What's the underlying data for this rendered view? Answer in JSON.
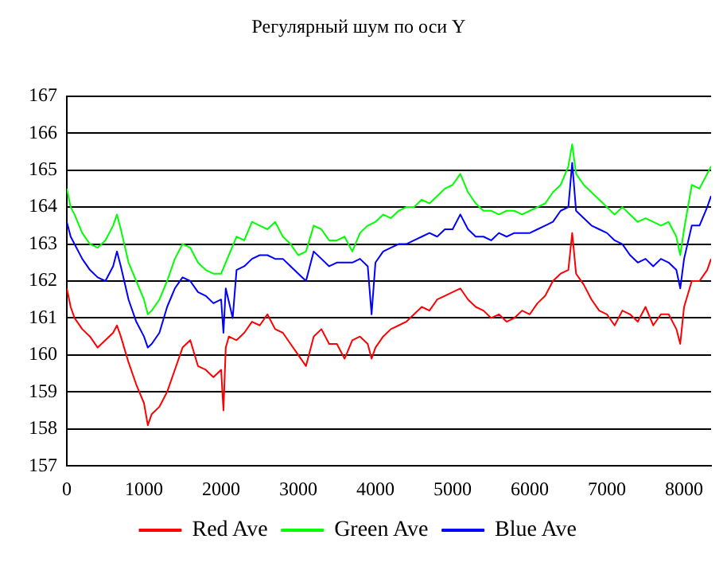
{
  "chart_data": {
    "type": "line",
    "title": "Регулярный шум по оси Y",
    "xlim": [
      0,
      8350
    ],
    "xticks": [
      0,
      1000,
      2000,
      3000,
      4000,
      5000,
      6000,
      7000,
      8000
    ],
    "ylim": [
      157,
      167
    ],
    "yticks": [
      157,
      158,
      159,
      160,
      161,
      162,
      163,
      164,
      165,
      166,
      167
    ],
    "grid": "y",
    "legend": "bottom",
    "marker": "none",
    "line_style": "solid",
    "series": [
      {
        "name": "Red Ave",
        "color": "#ff0000",
        "x": [
          0,
          50,
          100,
          200,
          300,
          400,
          500,
          600,
          650,
          700,
          800,
          900,
          1000,
          1050,
          1100,
          1200,
          1300,
          1400,
          1500,
          1600,
          1700,
          1800,
          1900,
          2000,
          2030,
          2060,
          2100,
          2200,
          2300,
          2400,
          2500,
          2600,
          2700,
          2800,
          2900,
          3000,
          3100,
          3200,
          3300,
          3400,
          3500,
          3600,
          3700,
          3800,
          3900,
          3950,
          4000,
          4100,
          4200,
          4300,
          4400,
          4500,
          4600,
          4700,
          4800,
          4900,
          5000,
          5100,
          5200,
          5300,
          5400,
          5500,
          5600,
          5700,
          5800,
          5900,
          6000,
          6100,
          6200,
          6300,
          6400,
          6500,
          6550,
          6600,
          6700,
          6800,
          6900,
          7000,
          7100,
          7200,
          7300,
          7400,
          7500,
          7600,
          7700,
          7800,
          7900,
          7950,
          8000,
          8100,
          8200,
          8300,
          8350
        ],
        "values": [
          161.8,
          161.3,
          161,
          160.7,
          160.5,
          160.2,
          160.4,
          160.6,
          160.8,
          160.5,
          159.8,
          159.2,
          158.7,
          158.1,
          158.4,
          158.6,
          159,
          159.6,
          160.2,
          160.4,
          159.7,
          159.6,
          159.4,
          159.6,
          158.5,
          160.2,
          160.5,
          160.4,
          160.6,
          160.9,
          160.8,
          161.1,
          160.7,
          160.6,
          160.3,
          160,
          159.7,
          160.5,
          160.7,
          160.3,
          160.3,
          159.9,
          160.4,
          160.5,
          160.3,
          159.9,
          160.2,
          160.5,
          160.7,
          160.8,
          160.9,
          161.1,
          161.3,
          161.2,
          161.5,
          161.6,
          161.7,
          161.8,
          161.5,
          161.3,
          161.2,
          161,
          161.1,
          160.9,
          161,
          161.2,
          161.1,
          161.4,
          161.6,
          162,
          162.2,
          162.3,
          163.3,
          162.2,
          161.9,
          161.5,
          161.2,
          161.1,
          160.8,
          161.2,
          161.1,
          160.9,
          161.3,
          160.8,
          161.1,
          161.1,
          160.7,
          160.3,
          161.3,
          162,
          162,
          162.3,
          162.6
        ]
      },
      {
        "name": "Green Ave",
        "color": "#00ff00",
        "x": [
          0,
          50,
          100,
          200,
          300,
          400,
          500,
          600,
          650,
          700,
          800,
          900,
          1000,
          1050,
          1100,
          1200,
          1300,
          1400,
          1500,
          1600,
          1700,
          1800,
          1900,
          2000,
          2100,
          2200,
          2300,
          2400,
          2500,
          2600,
          2700,
          2800,
          2900,
          3000,
          3100,
          3200,
          3300,
          3400,
          3500,
          3600,
          3700,
          3800,
          3900,
          4000,
          4100,
          4200,
          4300,
          4400,
          4500,
          4600,
          4700,
          4800,
          4900,
          5000,
          5100,
          5200,
          5300,
          5400,
          5500,
          5600,
          5700,
          5800,
          5900,
          6000,
          6100,
          6200,
          6300,
          6400,
          6500,
          6550,
          6600,
          6700,
          6800,
          6900,
          7000,
          7100,
          7200,
          7300,
          7400,
          7500,
          7600,
          7700,
          7800,
          7900,
          7950,
          8000,
          8100,
          8200,
          8300,
          8350
        ],
        "values": [
          164.5,
          164,
          163.8,
          163.3,
          163,
          162.9,
          163.1,
          163.5,
          163.8,
          163.4,
          162.5,
          162,
          161.5,
          161.1,
          161.2,
          161.5,
          162,
          162.6,
          163,
          162.9,
          162.5,
          162.3,
          162.2,
          162.2,
          162.7,
          163.2,
          163.1,
          163.6,
          163.5,
          163.4,
          163.6,
          163.2,
          163,
          162.7,
          162.8,
          163.5,
          163.4,
          163.1,
          163.1,
          163.2,
          162.8,
          163.3,
          163.5,
          163.6,
          163.8,
          163.7,
          163.9,
          164,
          164,
          164.2,
          164.1,
          164.3,
          164.5,
          164.6,
          164.9,
          164.4,
          164.1,
          163.9,
          163.9,
          163.8,
          163.9,
          163.9,
          163.8,
          163.9,
          164,
          164.1,
          164.4,
          164.6,
          165.1,
          165.7,
          164.9,
          164.6,
          164.4,
          164.2,
          164,
          163.8,
          164,
          163.8,
          163.6,
          163.7,
          163.6,
          163.5,
          163.6,
          163.2,
          162.7,
          163.4,
          164.6,
          164.5,
          164.9,
          165.1
        ]
      },
      {
        "name": "Blue Ave",
        "color": "#0000ff",
        "x": [
          0,
          50,
          100,
          200,
          300,
          400,
          500,
          600,
          650,
          700,
          800,
          900,
          1000,
          1050,
          1100,
          1200,
          1300,
          1400,
          1500,
          1600,
          1700,
          1800,
          1900,
          2000,
          2030,
          2060,
          2150,
          2200,
          2300,
          2400,
          2500,
          2600,
          2700,
          2800,
          2900,
          3000,
          3100,
          3200,
          3300,
          3400,
          3500,
          3600,
          3700,
          3800,
          3900,
          3950,
          4000,
          4100,
          4200,
          4300,
          4400,
          4500,
          4600,
          4700,
          4800,
          4900,
          5000,
          5100,
          5200,
          5300,
          5400,
          5500,
          5600,
          5700,
          5800,
          5900,
          6000,
          6100,
          6200,
          6300,
          6400,
          6500,
          6550,
          6600,
          6700,
          6800,
          6900,
          7000,
          7100,
          7200,
          7300,
          7400,
          7500,
          7600,
          7700,
          7800,
          7900,
          7950,
          8000,
          8100,
          8200,
          8300,
          8350
        ],
        "values": [
          163.6,
          163.2,
          163,
          162.6,
          162.3,
          162.1,
          162,
          162.4,
          162.8,
          162.4,
          161.5,
          160.9,
          160.5,
          160.2,
          160.3,
          160.6,
          161.3,
          161.8,
          162.1,
          162,
          161.7,
          161.6,
          161.4,
          161.5,
          160.6,
          161.8,
          161,
          162.3,
          162.4,
          162.6,
          162.7,
          162.7,
          162.6,
          162.6,
          162.4,
          162.2,
          162,
          162.8,
          162.6,
          162.4,
          162.5,
          162.5,
          162.5,
          162.6,
          162.4,
          161.1,
          162.5,
          162.8,
          162.9,
          163,
          163,
          163.1,
          163.2,
          163.3,
          163.2,
          163.4,
          163.4,
          163.8,
          163.4,
          163.2,
          163.2,
          163.1,
          163.3,
          163.2,
          163.3,
          163.3,
          163.3,
          163.4,
          163.5,
          163.6,
          163.9,
          164,
          165.2,
          163.9,
          163.7,
          163.5,
          163.4,
          163.3,
          163.1,
          163,
          162.7,
          162.5,
          162.6,
          162.4,
          162.6,
          162.5,
          162.3,
          161.8,
          162.6,
          163.5,
          163.5,
          164,
          164.3
        ]
      }
    ]
  }
}
